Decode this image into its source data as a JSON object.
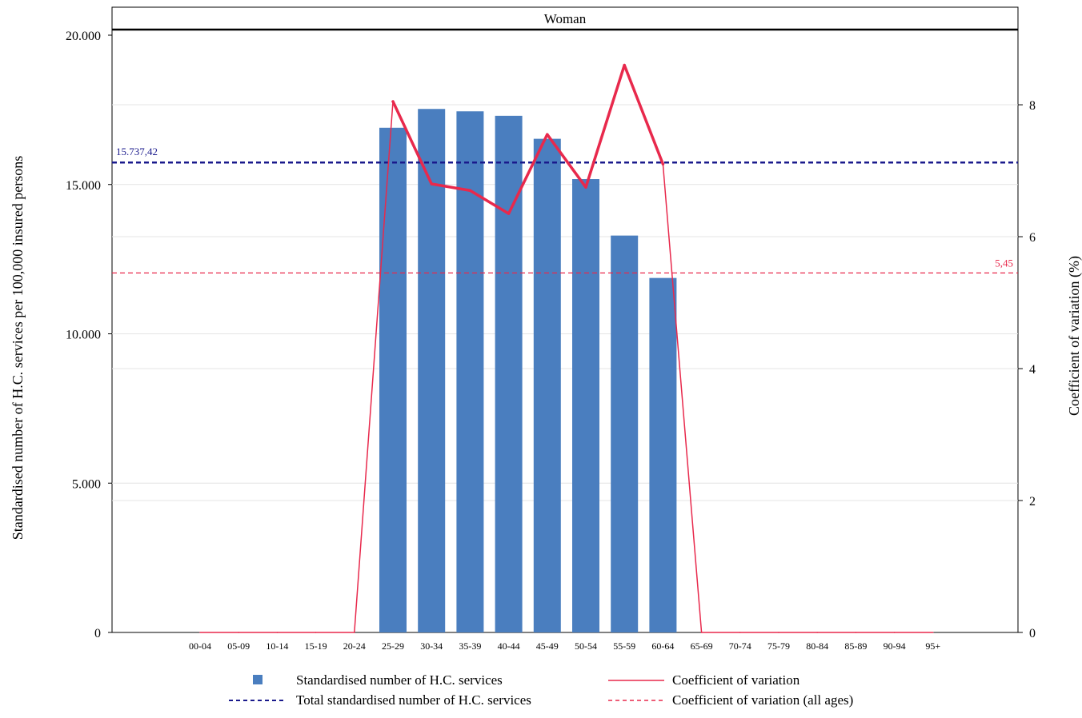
{
  "chart_data": {
    "type": "bar",
    "panel_title": "Woman",
    "categories": [
      "00-04",
      "05-09",
      "10-14",
      "15-19",
      "20-24",
      "25-29",
      "30-34",
      "35-39",
      "40-44",
      "45-49",
      "50-54",
      "55-59",
      "60-64",
      "65-69",
      "70-74",
      "75-79",
      "80-84",
      "85-89",
      "90-94",
      "95+"
    ],
    "series": [
      {
        "name": "Standardised number of H.C. services",
        "type": "bar",
        "axis": "left",
        "color": "#4a7ebf",
        "values": [
          0,
          0,
          0,
          0,
          0,
          16900,
          17530,
          17450,
          17300,
          16530,
          15180,
          13290,
          11870,
          0,
          0,
          0,
          0,
          0,
          0,
          0
        ]
      },
      {
        "name": "Coefficient of variation",
        "type": "line",
        "axis": "right",
        "color": "#e8294c",
        "values": [
          0,
          0,
          0,
          0,
          0,
          8.05,
          6.8,
          6.7,
          6.35,
          7.55,
          6.75,
          8.6,
          7.1,
          0,
          0,
          0,
          0,
          0,
          0,
          0
        ]
      }
    ],
    "reference_lines": [
      {
        "name": "Total standardised number of H.C. services",
        "axis": "left",
        "value": 15737.42,
        "label": "15.737,42",
        "color": "#1a1a8c"
      },
      {
        "name": "Coefficient of variation (all ages)",
        "axis": "right",
        "value": 5.45,
        "label": "5,45",
        "color": "#e8294c"
      }
    ],
    "ylabel": "Standardised number of H.C. services per 100,000 insured persons",
    "y2label": "Coefficient of variation (%)",
    "ylim": [
      0,
      20000
    ],
    "y2lim": [
      0,
      9.14
    ],
    "y_ticks": [
      {
        "value": 0,
        "label": "0"
      },
      {
        "value": 5000,
        "label": "5.000"
      },
      {
        "value": 10000,
        "label": "10.000"
      },
      {
        "value": 15000,
        "label": "15.000"
      },
      {
        "value": 20000,
        "label": "20.000"
      }
    ],
    "y2_ticks": [
      {
        "value": 0,
        "label": "0"
      },
      {
        "value": 2,
        "label": "2"
      },
      {
        "value": 4,
        "label": "4"
      },
      {
        "value": 6,
        "label": "6"
      },
      {
        "value": 8,
        "label": "8"
      }
    ],
    "grid": true,
    "legend": {
      "position": "bottom",
      "items": [
        {
          "label": "Standardised number of H.C. services",
          "symbol": "square",
          "color": "#4a7ebf"
        },
        {
          "label": "Coefficient of variation",
          "symbol": "solid-line",
          "color": "#e8294c"
        },
        {
          "label": "Total standardised number of H.C. services",
          "symbol": "dashed-line",
          "color": "#1a1a8c"
        },
        {
          "label": "Coefficient of variation (all ages)",
          "symbol": "dashed-line",
          "color": "#e8294c"
        }
      ]
    }
  }
}
